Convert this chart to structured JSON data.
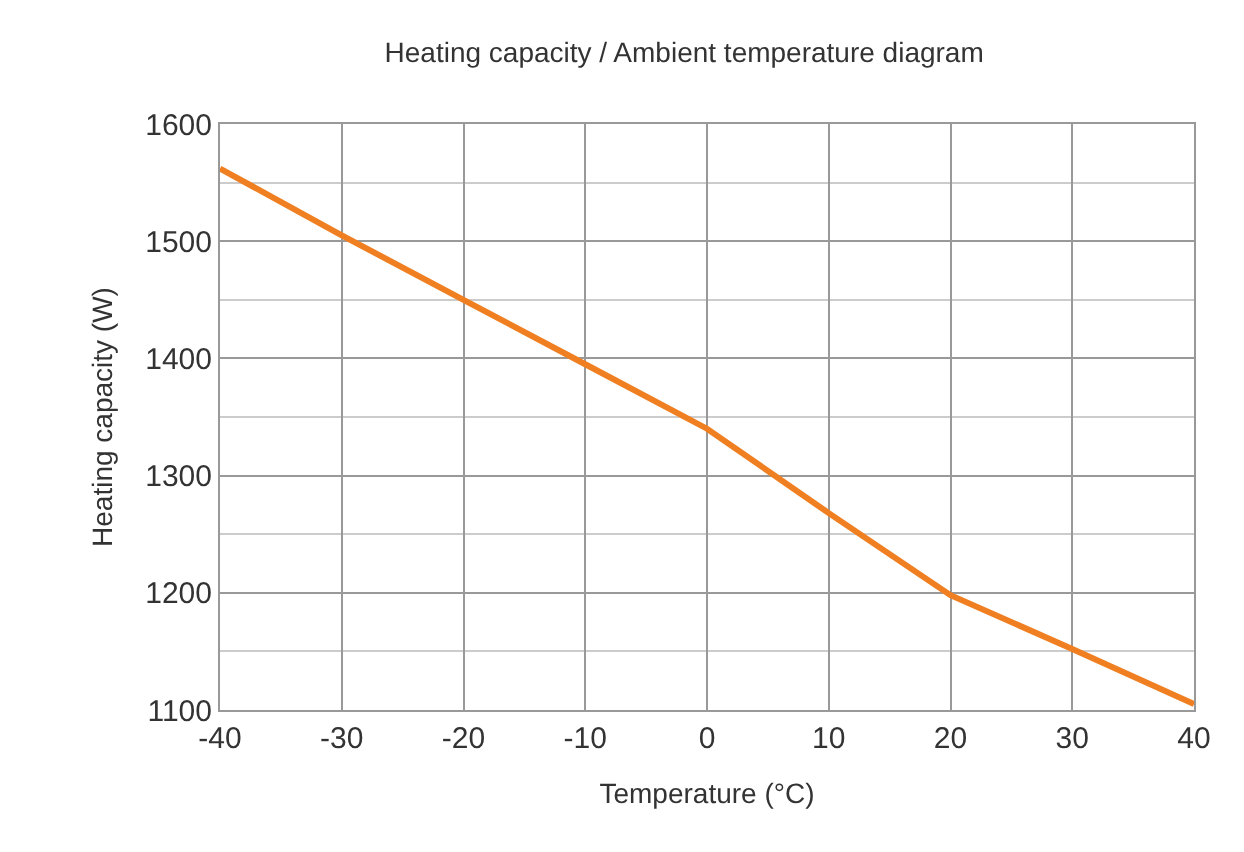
{
  "chart_data": {
    "type": "line",
    "title": "Heating capacity / Ambient temperature diagram",
    "xlabel": "Temperature (°C)",
    "ylabel": "Heating capacity (W)",
    "x": [
      -40,
      -30,
      -20,
      -10,
      0,
      10,
      20,
      30,
      40
    ],
    "series": [
      {
        "color": "#f07f22",
        "values": [
          1562,
          1505,
          1450,
          1395,
          1340,
          1268,
          1198,
          1152,
          1105
        ]
      }
    ],
    "xlim": [
      -40,
      40
    ],
    "xticks": [
      -40,
      -30,
      -20,
      -10,
      0,
      10,
      20,
      30,
      40
    ],
    "ylim": [
      1100,
      1600
    ],
    "yticks": [
      1100,
      1200,
      1300,
      1400,
      1500,
      1600
    ],
    "grid": true,
    "marker": "none",
    "line_style": "solid"
  }
}
